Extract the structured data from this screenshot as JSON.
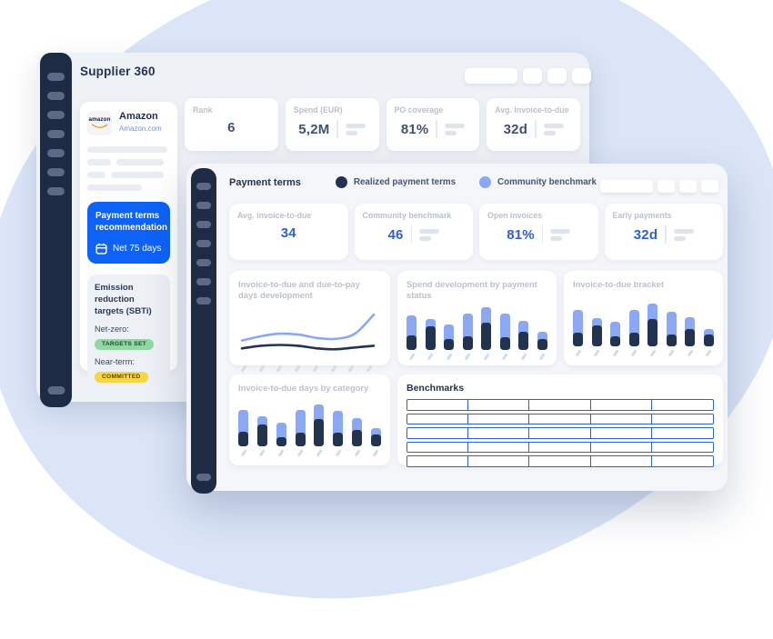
{
  "background": {
    "blob_color": "#dbe5f7"
  },
  "colors": {
    "sidebar_navy": "#1e2b45",
    "accent_blue": "#0e62f7",
    "kpi_blue": "#2f5fd3",
    "series_dark": "#22334f",
    "series_light": "#8aa8f5",
    "table_border_blue": "#2b5fe8",
    "badge_green_bg": "#8fd7a3",
    "badge_yellow_bg": "#f6d645"
  },
  "back_panel": {
    "title": "Supplier 360",
    "toolbar": {
      "pills": [
        "wide",
        "small",
        "small",
        "small"
      ]
    },
    "sidebar": {
      "item_count": 7,
      "has_bottom_item": true
    },
    "supplier_card": {
      "logo_text": "amazon",
      "name": "Amazon",
      "domain": "Amazon.com"
    },
    "kpis": [
      {
        "label": "Rank",
        "value": "6",
        "sparkline": false
      },
      {
        "label": "Spend (EUR)",
        "value": "5,2M",
        "sparkline": true
      },
      {
        "label": "PO coverage",
        "value": "81%",
        "sparkline": true
      },
      {
        "label": "Avg. Invoice-to-due",
        "value": "32d",
        "sparkline": true
      }
    ],
    "recommendation_card": {
      "title": "Payment terms recommendation",
      "icon": "calendar-icon",
      "value": "Net 75 days"
    },
    "sbti_card": {
      "title": "Emission reduction targets (SBTi)",
      "rows": [
        {
          "label": "Net-zero:",
          "badge": "TARGETS SET",
          "badge_bg": "#8fd7a3",
          "badge_text_color": "#1c4a2c"
        },
        {
          "label": "Near-term:",
          "badge": "COMMITTED",
          "badge_bg": "#f6d645",
          "badge_text_color": "#57470e"
        }
      ]
    }
  },
  "front_panel": {
    "title": "Payment terms",
    "toolbar": {
      "pills": [
        "wide",
        "small",
        "small",
        "small"
      ]
    },
    "sidebar": {
      "item_count": 7,
      "has_bottom_item": true
    },
    "legend": [
      {
        "label": "Realized payment terms",
        "color": "#22334f"
      },
      {
        "label": "Community benchmark",
        "color": "#8aa8f5"
      }
    ],
    "kpis": [
      {
        "label": "Avg. invoice-to-due",
        "value": "34",
        "sparkline": false
      },
      {
        "label": "Community benchmark",
        "value": "46",
        "sparkline": true
      },
      {
        "label": "Open invoices",
        "value": "81%",
        "sparkline": true
      },
      {
        "label": "Early payments",
        "value": "32d",
        "sparkline": true
      }
    ]
  },
  "chart_data": [
    {
      "id": "invoice-to-due-development",
      "type": "line",
      "title": "Invoice-to-due and due-to-pay days development",
      "note": "decorative mock chart, no axis labels shown; values in relative day units",
      "x": [
        1,
        2,
        3,
        4,
        5,
        6,
        7,
        8
      ],
      "series": [
        {
          "name": "Realized payment terms",
          "color": "#22334f",
          "values": [
            5,
            8,
            9,
            8,
            5,
            4,
            6,
            8
          ]
        },
        {
          "name": "Community benchmark",
          "color": "#8aa8f5",
          "values": [
            14,
            19,
            22,
            21,
            17,
            16,
            22,
            44
          ]
        }
      ],
      "axes_hidden": true,
      "grid": false,
      "legend_position": "panel-header"
    },
    {
      "id": "spend-by-payment-status",
      "type": "bar",
      "stacked": true,
      "title": "Spend development by payment status",
      "note": "decorative mock chart, no axis labels shown; values in relative units",
      "categories": [
        "",
        "",
        "",
        "",
        "",
        "",
        "",
        ""
      ],
      "series": [
        {
          "name": "Realized payment terms",
          "color": "#22334f",
          "values": [
            16,
            26,
            12,
            15,
            30,
            14,
            20,
            12
          ]
        },
        {
          "name": "Community benchmark",
          "color": "#8aa8f5",
          "values": [
            22,
            8,
            16,
            25,
            17,
            26,
            12,
            8
          ]
        }
      ],
      "axes_hidden": true,
      "grid": false
    },
    {
      "id": "invoice-to-due-bracket",
      "type": "bar",
      "stacked": true,
      "title": "Invoice-to-due bracket",
      "note": "decorative mock chart, no axis labels shown; values in relative units",
      "categories": [
        "",
        "",
        "",
        "",
        "",
        "",
        "",
        ""
      ],
      "series": [
        {
          "name": "Realized payment terms",
          "color": "#22334f",
          "values": [
            15,
            23,
            11,
            15,
            30,
            13,
            19,
            13
          ]
        },
        {
          "name": "Community benchmark",
          "color": "#8aa8f5",
          "values": [
            25,
            8,
            16,
            25,
            17,
            25,
            13,
            6
          ]
        }
      ],
      "axes_hidden": true,
      "grid": false
    },
    {
      "id": "invoice-to-due-days-by-category",
      "type": "bar",
      "stacked": true,
      "title": "Invoice-to-due days by category",
      "note": "decorative mock chart, no axis labels shown; values in relative units",
      "categories": [
        "",
        "",
        "",
        "",
        "",
        "",
        "",
        ""
      ],
      "series": [
        {
          "name": "Realized payment terms",
          "color": "#22334f",
          "values": [
            16,
            24,
            10,
            15,
            30,
            15,
            18,
            13
          ]
        },
        {
          "name": "Community benchmark",
          "color": "#8aa8f5",
          "values": [
            24,
            9,
            16,
            25,
            16,
            24,
            13,
            7
          ]
        }
      ],
      "axes_hidden": true,
      "grid": false
    },
    {
      "id": "benchmarks",
      "type": "table",
      "title": "Benchmarks",
      "rows": 5,
      "columns": 5,
      "cells": "empty",
      "border_color": "#2b5fe8"
    }
  ]
}
